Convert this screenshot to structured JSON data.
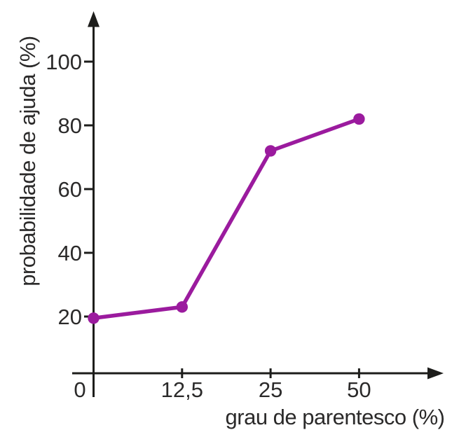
{
  "chart_data": {
    "type": "line",
    "title": "",
    "xlabel": "grau de parentesco (%)",
    "ylabel": "probabilidade de ajuda (%)",
    "x_values": [
      0,
      12.5,
      25,
      50
    ],
    "x_tick_labels": [
      "0",
      "12,5",
      "25",
      "50"
    ],
    "y_ticks": [
      20,
      40,
      60,
      80,
      100
    ],
    "ylim": [
      0,
      115
    ],
    "x_spacing": "categorical-equal",
    "grid": false,
    "legend": "none",
    "series": [
      {
        "name": "probabilidade de ajuda",
        "values": [
          19.5,
          23,
          72,
          82
        ],
        "color": "#9b1b9e"
      }
    ],
    "axis_color": "#1d1d1b",
    "text_color": "#2b2a2a",
    "background": "#ffffff"
  }
}
